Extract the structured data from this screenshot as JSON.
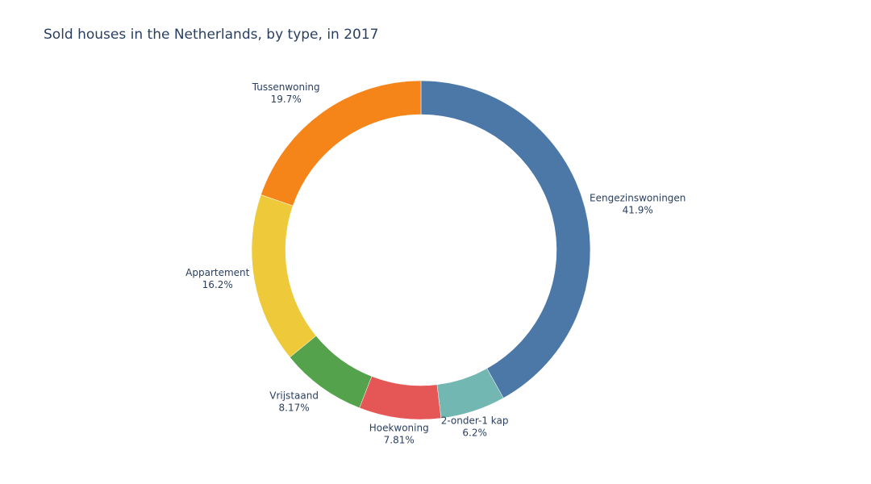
{
  "chart_data": {
    "type": "pie",
    "hole": true,
    "title": "Sold houses in the Netherlands, by type, in 2017",
    "direction": "clockwise",
    "labels": [
      "Eengezinswoningen",
      "2-onder-1 kap",
      "Hoekwoning",
      "Vrijstaand",
      "Appartement",
      "Tussenwoning"
    ],
    "values": [
      41.9,
      6.2,
      7.81,
      8.17,
      16.2,
      19.7
    ],
    "value_labels": [
      "41.9%",
      "6.2%",
      "7.81%",
      "8.17%",
      "16.2%",
      "19.7%"
    ],
    "colors": [
      "#4c78a8",
      "#72b7b2",
      "#e45756",
      "#54a24b",
      "#eeca3b",
      "#f58518"
    ]
  }
}
